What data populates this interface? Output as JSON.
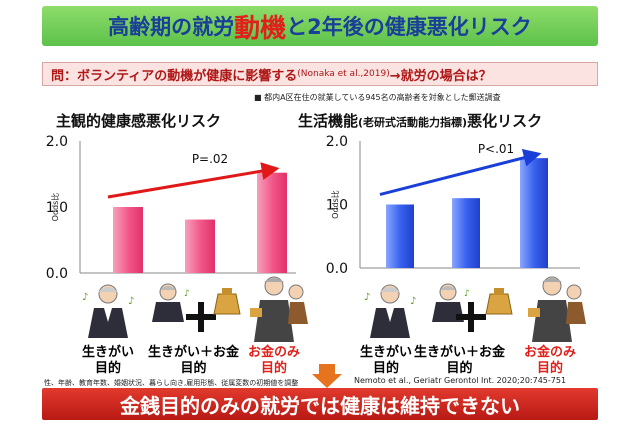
{
  "title": {
    "pre": "高齢期の就労",
    "highlight": "動機",
    "post": "と2年後の健康悪化リスク"
  },
  "question": {
    "pre": "問：ボランティアの動機が健康に影響する",
    "cite": "(Nonaka et al.,2019)",
    "post": "→就労の場合は？"
  },
  "survey_note": "■ 都内A区在住の就業している945名の高齢者を対象とした郵送調査",
  "adjust_note": "性、年齢、教育年数、婚姻状況、暮らし向き,雇用形態、従属変数の初期値を調整",
  "reference": "Nemoto et al., Geriatr Gerontol Int. 2020;20:745-751",
  "conclusion": "金銭目的のみの就労では健康は維持できない",
  "categories": [
    {
      "line1": "生きがい",
      "line2": "目的"
    },
    {
      "line1": "生きがい＋お金",
      "line2": "目的"
    },
    {
      "line1": "お金のみ",
      "line2": "目的"
    }
  ],
  "chart_data": [
    {
      "type": "bar",
      "title": "主観的健康感悪化リスク",
      "categories": [
        "生きがい目的",
        "生きがい＋お金目的",
        "お金のみ目的"
      ],
      "values": [
        1.0,
        0.81,
        1.52
      ],
      "ylabel": "Odds比",
      "ylim": [
        0,
        2.0
      ],
      "yticks": [
        "0.0",
        "1.0",
        "2.0"
      ],
      "annotation": "P=.02",
      "bar_color": "#f25a8a",
      "arrow_color": "#e01818",
      "grid": false
    },
    {
      "type": "bar",
      "title": "生活機能",
      "title_small": "(老研式活動能力指標)",
      "title_post": "悪化リスク",
      "categories": [
        "生きがい目的",
        "生きがい＋お金目的",
        "お金のみ目的"
      ],
      "values": [
        1.0,
        1.1,
        1.73
      ],
      "ylabel": "Odds比",
      "ylim": [
        0,
        2.0
      ],
      "yticks": [
        "0.0",
        "1.0",
        "2.0"
      ],
      "annotation": "P<.01",
      "bar_color": "#3a63ee",
      "arrow_color": "#1a3ed8",
      "grid": false
    }
  ]
}
